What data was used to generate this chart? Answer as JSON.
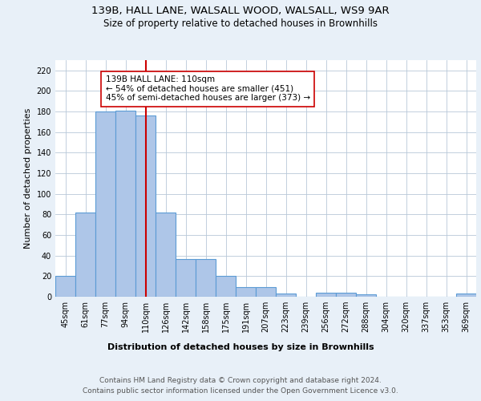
{
  "title1": "139B, HALL LANE, WALSALL WOOD, WALSALL, WS9 9AR",
  "title2": "Size of property relative to detached houses in Brownhills",
  "xlabel": "Distribution of detached houses by size in Brownhills",
  "ylabel": "Number of detached properties",
  "bar_labels": [
    "45sqm",
    "61sqm",
    "77sqm",
    "94sqm",
    "110sqm",
    "126sqm",
    "142sqm",
    "158sqm",
    "175sqm",
    "191sqm",
    "207sqm",
    "223sqm",
    "239sqm",
    "256sqm",
    "272sqm",
    "288sqm",
    "304sqm",
    "320sqm",
    "337sqm",
    "353sqm",
    "369sqm"
  ],
  "bar_values": [
    20,
    82,
    180,
    181,
    176,
    82,
    37,
    37,
    20,
    9,
    9,
    3,
    0,
    4,
    4,
    2,
    0,
    0,
    0,
    0,
    3
  ],
  "bar_color": "#aec6e8",
  "bar_edge_color": "#5b9bd5",
  "vline_x": 4,
  "vline_color": "#cc0000",
  "annotation_text": "139B HALL LANE: 110sqm\n← 54% of detached houses are smaller (451)\n45% of semi-detached houses are larger (373) →",
  "annotation_box_color": "#ffffff",
  "annotation_box_edge": "#cc0000",
  "ylim": [
    0,
    230
  ],
  "yticks": [
    0,
    20,
    40,
    60,
    80,
    100,
    120,
    140,
    160,
    180,
    200,
    220
  ],
  "footer1": "Contains HM Land Registry data © Crown copyright and database right 2024.",
  "footer2": "Contains public sector information licensed under the Open Government Licence v3.0.",
  "bg_color": "#e8f0f8",
  "plot_bg_color": "#ffffff",
  "grid_color": "#b8c8d8"
}
